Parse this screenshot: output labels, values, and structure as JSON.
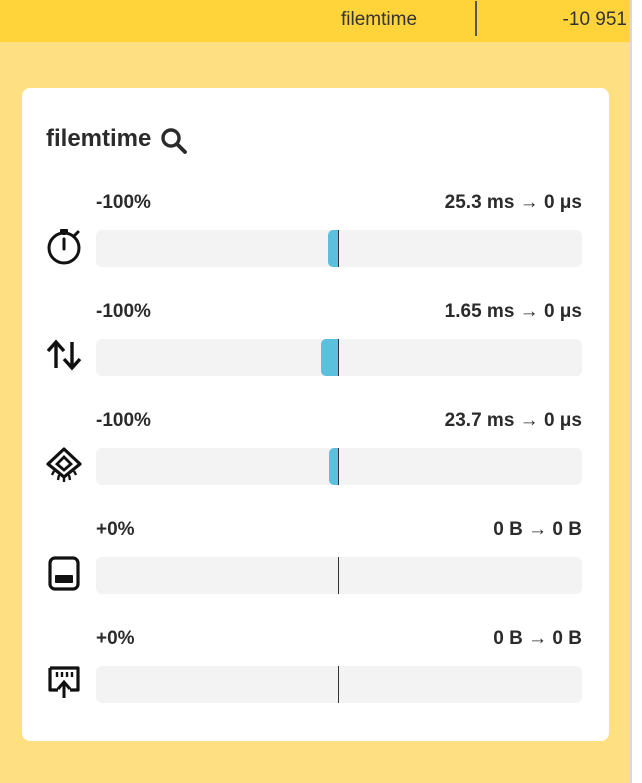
{
  "topbar": {
    "name": "filemtime",
    "value": "-10 951",
    "color": "#ffd43b"
  },
  "card": {
    "title": "filemtime"
  },
  "metrics": [
    {
      "icon": "stopwatch-icon",
      "percent": "-100%",
      "change": "25.3 ms → 0 μs",
      "bar_level": -1.0
    },
    {
      "icon": "io-arrows-icon",
      "percent": "-100%",
      "change": "1.65 ms → 0 μs",
      "bar_level": -1.0
    },
    {
      "icon": "cpu-chip-icon",
      "percent": "-100%",
      "change": "23.7 ms → 0 μs",
      "bar_level": -1.0
    },
    {
      "icon": "memory-icon",
      "percent": "+0%",
      "change": "0 B → 0 B",
      "bar_level": 0
    },
    {
      "icon": "network-upload-icon",
      "percent": "+0%",
      "change": "0 B → 0 B",
      "bar_level": 0
    }
  ],
  "colors": {
    "bar": "#5bc0de",
    "page_background": "#fedf81",
    "track": "#f3f3f3"
  }
}
